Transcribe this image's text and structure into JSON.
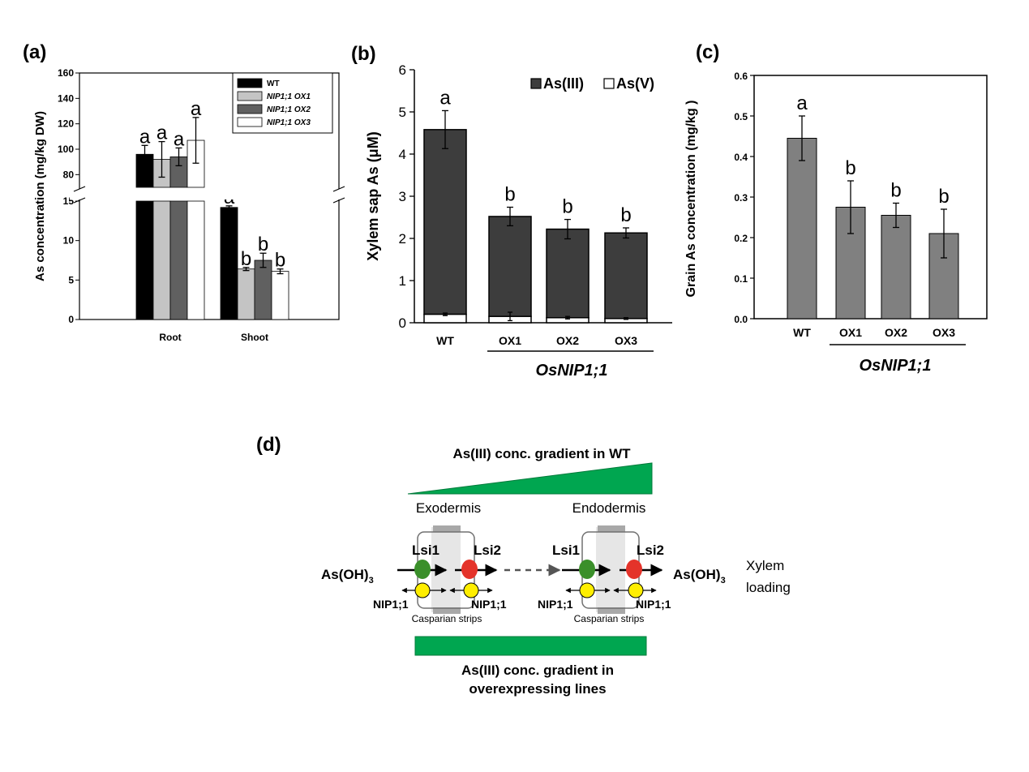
{
  "chart_data": [
    {
      "panel": "(a)",
      "type": "bar",
      "ylabel": "As concentration (mg/kg DW)",
      "categories": [
        "Root",
        "Shoot"
      ],
      "broken_axis": {
        "lower": [
          0,
          15
        ],
        "upper": [
          70,
          160
        ]
      },
      "yticks_lower": [
        "0",
        "5",
        "10",
        "15"
      ],
      "yticks_upper": [
        "80",
        "100",
        "120",
        "140",
        "160"
      ],
      "legend": {
        "position": "top-right",
        "entries": [
          "WT",
          "NIP1;1 OX1",
          "NIP1;1 OX2",
          "NIP1;1 OX3"
        ]
      },
      "colors": [
        "#000000",
        "#c4c4c4",
        "#606060",
        "#ffffff"
      ],
      "series": [
        {
          "name": "WT",
          "values": [
            96,
            14.2
          ],
          "errors": [
            7,
            0.2
          ],
          "letters": [
            "a",
            "a"
          ]
        },
        {
          "name": "NIP1;1 OX1",
          "values": [
            92,
            6.4
          ],
          "errors": [
            14,
            0.2
          ],
          "letters": [
            "a",
            "b"
          ]
        },
        {
          "name": "NIP1;1 OX2",
          "values": [
            94,
            7.5
          ],
          "errors": [
            7,
            0.9
          ],
          "letters": [
            "a",
            "b"
          ]
        },
        {
          "name": "NIP1;1 OX3",
          "values": [
            107,
            6.1
          ],
          "errors": [
            18,
            0.3
          ],
          "letters": [
            "a",
            "b"
          ]
        }
      ]
    },
    {
      "panel": "(b)",
      "type": "bar",
      "stacked": true,
      "ylabel": "Xylem sap As (μM)",
      "ylim": [
        0,
        6
      ],
      "yticks": [
        "0",
        "1",
        "2",
        "3",
        "4",
        "5",
        "6"
      ],
      "categories": [
        "WT",
        "OX1",
        "OX2",
        "OX3"
      ],
      "group_label": "OsNIP1;1",
      "legend": {
        "position": "top-right",
        "entries": [
          "As(III)",
          "As(V)"
        ]
      },
      "colors": {
        "As(III)": "#3d3d3d",
        "As(V)": "#ffffff"
      },
      "series": [
        {
          "name": "As(V)",
          "values": [
            0.2,
            0.15,
            0.12,
            0.1
          ],
          "errors": [
            0.03,
            0.1,
            0.03,
            0.02
          ]
        },
        {
          "name": "As(III)",
          "totals": [
            4.58,
            2.52,
            2.22,
            2.13
          ],
          "errors": [
            0.45,
            0.22,
            0.23,
            0.12
          ]
        }
      ],
      "letters": [
        "a",
        "b",
        "b",
        "b"
      ]
    },
    {
      "panel": "(c)",
      "type": "bar",
      "ylabel": "Grain As concentration (mg/kg )",
      "ylim": [
        0,
        0.6
      ],
      "yticks": [
        "0.0",
        "0.1",
        "0.2",
        "0.3",
        "0.4",
        "0.5",
        "0.6"
      ],
      "categories": [
        "WT",
        "OX1",
        "OX2",
        "OX3"
      ],
      "group_label": "OsNIP1;1",
      "color": "#808080",
      "values": [
        0.445,
        0.275,
        0.255,
        0.21
      ],
      "errors": [
        0.055,
        0.065,
        0.03,
        0.06
      ],
      "letters": [
        "a",
        "b",
        "b",
        "b"
      ]
    }
  ],
  "diagram": {
    "panel": "(d)",
    "top_gradient_label": "As(III) conc. gradient in WT",
    "exodermis": "Exodermis",
    "endodermis": "Endodermis",
    "lsi1": "Lsi1",
    "lsi2": "Lsi2",
    "left_species": "As(OH)",
    "right_species": "As(OH)",
    "subscript": "3",
    "nip": "NIP1;1",
    "casparian": "Casparian strips",
    "xylem_line1": "Xylem",
    "xylem_line2": "loading",
    "bottom_label_line1": "As(III) conc. gradient in",
    "bottom_label_line2": "overexpressing lines",
    "green": "#00a650"
  }
}
